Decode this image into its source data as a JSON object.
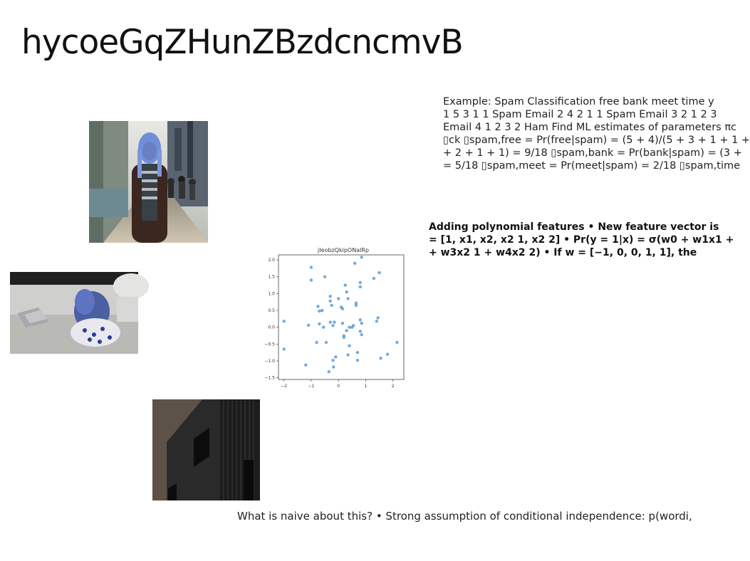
{
  "title": "hycoeGqZHunZBzdcncmvB",
  "text_block": {
    "lines": [
      "Example: Spam Classification free bank meet time y",
      "1 5 3 1 1 Spam Email 2 4 2 1 1 Spam Email 3 2 1 2 3",
      "Email 4 1 2 3 2 Ham Find ML estimates of parameters πc",
      "▯ck ▯spam,free = Pr(free|spam) = (5 + 4)/(5 + 3 + 1 + 1 +",
      "+ 2 + 1 + 1) = 9/18 ▯spam,bank = Pr(bank|spam) = (3 +",
      "= 5/18 ▯spam,meet = Pr(meet|spam) = 2/18 ▯spam,time"
    ]
  },
  "bold_block": {
    "lines": [
      "Adding polynomial features • New feature vector is",
      "= [1, x1, x2, x2 1, x2 2] • Pr(y = 1|x) = σ(w0 + w1x1 +",
      "+ w3x2 1 + w4x2 2) • If w = [−1, 0, 0, 1, 1], the"
    ]
  },
  "bottom_text": "What is naive about this? • Strong assumption of conditional independence: p(wordi,",
  "images": [
    {
      "name": "street-photo",
      "description": "person with blue-tinted hair on city street"
    },
    {
      "name": "laptop-photo",
      "description": "person sitting with laptop on floor"
    },
    {
      "name": "building-photo",
      "description": "dark building facade"
    }
  ],
  "chart_data": {
    "type": "scatter",
    "title": "jIeobzQkipONalRp",
    "xlabel": "",
    "ylabel": "",
    "xlim": [
      -2.2,
      2.4
    ],
    "ylim": [
      -1.55,
      2.15
    ],
    "xticks": [
      -2,
      -1,
      0,
      1,
      2
    ],
    "yticks": [
      -1.5,
      -1.0,
      -0.5,
      0.0,
      0.5,
      1.0,
      1.5,
      2.0
    ],
    "xtick_labels": [
      "−2",
      "−1",
      "0",
      "1",
      "2"
    ],
    "ytick_labels": [
      "−1.5",
      "−1.0",
      "−0.5",
      "0.0",
      "0.5",
      "1.0",
      "1.5",
      "2.0"
    ],
    "color": "#5b9bd5",
    "points": [
      [
        -2.0,
        0.18
      ],
      [
        -2.0,
        -0.65
      ],
      [
        -1.2,
        -1.12
      ],
      [
        -1.1,
        0.06
      ],
      [
        -1.0,
        1.78
      ],
      [
        -1.0,
        1.4
      ],
      [
        -0.75,
        0.62
      ],
      [
        -0.7,
        0.48
      ],
      [
        -0.6,
        0.5
      ],
      [
        -0.55,
        0.0
      ],
      [
        -0.5,
        1.5
      ],
      [
        -0.45,
        -0.45
      ],
      [
        -0.8,
        -0.45
      ],
      [
        -0.3,
        0.92
      ],
      [
        -0.3,
        0.78
      ],
      [
        -0.25,
        0.65
      ],
      [
        -0.2,
        0.05
      ],
      [
        -0.15,
        0.15
      ],
      [
        -0.3,
        0.15
      ],
      [
        -0.7,
        0.1
      ],
      [
        -0.2,
        -0.98
      ],
      [
        -0.18,
        -1.18
      ],
      [
        -0.1,
        -0.88
      ],
      [
        -0.35,
        -1.32
      ],
      [
        0.0,
        0.85
      ],
      [
        0.1,
        0.6
      ],
      [
        0.15,
        0.12
      ],
      [
        0.15,
        0.55
      ],
      [
        0.2,
        -0.3
      ],
      [
        0.2,
        -0.25
      ],
      [
        0.25,
        1.25
      ],
      [
        0.3,
        1.05
      ],
      [
        0.3,
        -0.1
      ],
      [
        0.35,
        0.85
      ],
      [
        0.4,
        0.0
      ],
      [
        0.4,
        -0.55
      ],
      [
        0.35,
        -0.82
      ],
      [
        0.5,
        0.0
      ],
      [
        0.55,
        0.05
      ],
      [
        0.6,
        1.9
      ],
      [
        0.65,
        0.72
      ],
      [
        0.65,
        0.65
      ],
      [
        0.7,
        -0.75
      ],
      [
        0.7,
        -0.98
      ],
      [
        0.8,
        1.33
      ],
      [
        0.8,
        1.2
      ],
      [
        0.85,
        2.08
      ],
      [
        0.8,
        0.22
      ],
      [
        0.8,
        -0.12
      ],
      [
        0.85,
        0.12
      ],
      [
        0.85,
        -0.22
      ],
      [
        1.3,
        1.45
      ],
      [
        1.4,
        0.18
      ],
      [
        1.45,
        0.28
      ],
      [
        1.5,
        1.62
      ],
      [
        1.55,
        -0.92
      ],
      [
        1.8,
        -0.8
      ],
      [
        2.15,
        -0.45
      ]
    ]
  }
}
